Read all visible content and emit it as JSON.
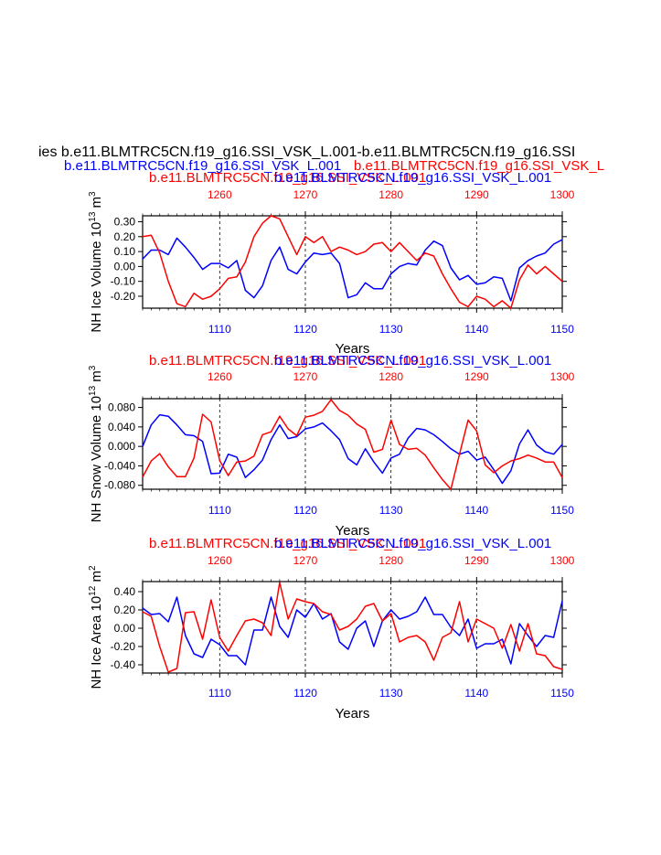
{
  "title": {
    "line1": "ies b.e11.BLMTRC5CN.f19_g16.SSI_VSK_L.001-b.e11.BLMTRC5CN.f19_g16.SSI",
    "line2_left": "b.e11.BLMTRC5CN.f19_g16.SSI_VSK_L.001",
    "line2_right": "b.e11.BLMTRC5CN.f19_g16.SSI_VSK_L",
    "line3_left": "b.e11.BLMTRC5CN.f19_g16.SSI_VSK_L.001",
    "line3_right": "b.e11.BLMTRC5CN.f19_g16.SSI_VSK_L.001"
  },
  "colors": {
    "run_top": "#ff0000",
    "run_bottom": "#0000ff",
    "axis": "#000000"
  },
  "chart_data": [
    {
      "type": "line",
      "ylabel": "NH Ice Volume 10",
      "ylabel_exp": "13",
      "ylabel_unit": " m",
      "ylabel_unit_exp": "3",
      "xlabel": "Years",
      "top_label_left": "b.e11.BLMTRC5CN.f19_g16.SSI_VSK_L.001",
      "top_label_right": "b.e11.BLMTRC5CN.f19_g16.SSI_VSK_L.001",
      "x_bottom": {
        "range": [
          1101,
          1150
        ],
        "ticks": [
          "1110",
          "1120",
          "1130",
          "1140",
          "1150"
        ]
      },
      "x_top": {
        "range": [
          1251,
          1300
        ],
        "ticks": [
          "1260",
          "1270",
          "1280",
          "1290",
          "1300"
        ]
      },
      "ylim": [
        -0.28,
        0.34
      ],
      "yticks": [
        "0.30",
        "0.20",
        "0.10",
        "0.00",
        "-0.10",
        "-0.20"
      ],
      "ytick_values": [
        0.3,
        0.2,
        0.1,
        0.0,
        -0.1,
        -0.2
      ],
      "grid": "dashed vertical at labeled ticks",
      "series": [
        {
          "color": "#0000ff",
          "axis": "bottom",
          "values": [
            0.05,
            0.11,
            0.11,
            0.08,
            0.19,
            0.13,
            0.06,
            -0.02,
            0.02,
            0.02,
            -0.01,
            0.04,
            -0.16,
            -0.21,
            -0.13,
            0.04,
            0.13,
            -0.02,
            -0.05,
            0.03,
            0.09,
            0.08,
            0.09,
            0.02,
            -0.21,
            -0.19,
            -0.11,
            -0.15,
            -0.15,
            -0.05,
            0.0,
            0.02,
            0.01,
            0.11,
            0.17,
            0.14,
            -0.01,
            -0.09,
            -0.06,
            -0.12,
            -0.11,
            -0.07,
            -0.08,
            -0.23,
            -0.01,
            0.04,
            0.07,
            0.09,
            0.15,
            0.18
          ]
        },
        {
          "color": "#ff0000",
          "axis": "top",
          "values": [
            0.2,
            0.21,
            0.09,
            -0.1,
            -0.25,
            -0.27,
            -0.18,
            -0.22,
            -0.2,
            -0.15,
            -0.08,
            -0.07,
            0.03,
            0.2,
            0.29,
            0.34,
            0.32,
            0.2,
            0.08,
            0.2,
            0.16,
            0.2,
            0.1,
            0.13,
            0.11,
            0.08,
            0.1,
            0.15,
            0.16,
            0.1,
            0.16,
            0.1,
            0.04,
            0.09,
            0.07,
            -0.05,
            -0.15,
            -0.24,
            -0.27,
            -0.2,
            -0.22,
            -0.27,
            -0.23,
            -0.28,
            -0.09,
            0.01,
            -0.05,
            0.0,
            -0.05,
            -0.1
          ]
        }
      ]
    },
    {
      "type": "line",
      "ylabel": "NH Snow Volume 10",
      "ylabel_exp": "13",
      "ylabel_unit": " m",
      "ylabel_unit_exp": "3",
      "xlabel": "Years",
      "top_label_left": "b.e11.BLMTRC5CN.f19_g16.SSI_VSK_L.001",
      "top_label_right": "b.e11.BLMTRC5CN.f19_g16.SSI_VSK_L.001",
      "x_bottom": {
        "range": [
          1101,
          1150
        ],
        "ticks": [
          "1110",
          "1120",
          "1130",
          "1140",
          "1150"
        ]
      },
      "x_top": {
        "range": [
          1251,
          1300
        ],
        "ticks": [
          "1260",
          "1270",
          "1280",
          "1290",
          "1300"
        ]
      },
      "ylim": [
        -0.088,
        0.098
      ],
      "yticks": [
        "0.080",
        "0.040",
        "0.000",
        "-0.040",
        "-0.080"
      ],
      "ytick_values": [
        0.08,
        0.04,
        0.0,
        -0.04,
        -0.08
      ],
      "grid": "dashed vertical at labeled ticks",
      "series": [
        {
          "color": "#0000ff",
          "axis": "bottom",
          "values": [
            0.0,
            0.044,
            0.065,
            0.062,
            0.044,
            0.024,
            0.022,
            0.01,
            -0.056,
            -0.055,
            -0.016,
            -0.022,
            -0.064,
            -0.048,
            -0.028,
            0.014,
            0.044,
            0.016,
            0.02,
            0.036,
            0.04,
            0.048,
            0.032,
            0.014,
            -0.025,
            -0.038,
            -0.005,
            -0.032,
            -0.055,
            -0.024,
            -0.016,
            0.017,
            0.037,
            0.034,
            0.024,
            0.01,
            -0.005,
            -0.016,
            -0.01,
            -0.028,
            -0.022,
            -0.048,
            -0.076,
            -0.05,
            0.005,
            0.034,
            0.003,
            -0.011,
            -0.016,
            0.004
          ]
        },
        {
          "color": "#ff0000",
          "axis": "top",
          "values": [
            -0.063,
            -0.03,
            -0.015,
            -0.042,
            -0.062,
            -0.062,
            -0.024,
            0.066,
            0.05,
            -0.029,
            -0.06,
            -0.032,
            -0.03,
            -0.02,
            0.024,
            0.03,
            0.062,
            0.036,
            0.022,
            0.06,
            0.064,
            0.072,
            0.096,
            0.074,
            0.064,
            0.046,
            0.035,
            -0.012,
            -0.006,
            0.054,
            0.004,
            -0.006,
            -0.004,
            -0.018,
            -0.044,
            -0.068,
            -0.088,
            -0.016,
            0.054,
            0.032,
            -0.038,
            -0.054,
            -0.04,
            -0.03,
            -0.025,
            -0.018,
            -0.024,
            -0.032,
            -0.032,
            -0.064
          ]
        }
      ]
    },
    {
      "type": "line",
      "ylabel": "NH Ice Area 10",
      "ylabel_exp": "12",
      "ylabel_unit": " m",
      "ylabel_unit_exp": "2",
      "xlabel": "Years",
      "top_label_left": "b.e11.BLMTRC5CN.f19_g16.SSI_VSK_L.001",
      "top_label_right": "b.e11.BLMTRC5CN.f19_g16.SSI_VSK_L.001",
      "x_bottom": {
        "range": [
          1101,
          1150
        ],
        "ticks": [
          "1110",
          "1120",
          "1130",
          "1140",
          "1150"
        ]
      },
      "x_top": {
        "range": [
          1251,
          1300
        ],
        "ticks": [
          "1260",
          "1270",
          "1280",
          "1290",
          "1300"
        ]
      },
      "ylim": [
        -0.49,
        0.51
      ],
      "yticks": [
        "0.40",
        "0.20",
        "0.00",
        "-0.20",
        "-0.40"
      ],
      "ytick_values": [
        0.4,
        0.2,
        0.0,
        -0.2,
        -0.4
      ],
      "grid": "dashed vertical at labeled ticks",
      "series": [
        {
          "color": "#0000ff",
          "axis": "bottom",
          "values": [
            0.22,
            0.15,
            0.16,
            0.07,
            0.34,
            -0.08,
            -0.28,
            -0.32,
            -0.12,
            -0.18,
            -0.3,
            -0.3,
            -0.4,
            -0.02,
            -0.02,
            0.34,
            0.02,
            -0.1,
            0.2,
            0.12,
            0.27,
            0.1,
            0.16,
            -0.15,
            -0.23,
            0.0,
            0.08,
            -0.2,
            0.08,
            0.2,
            0.1,
            0.13,
            0.18,
            0.34,
            0.15,
            0.15,
            0.01,
            -0.08,
            0.1,
            -0.22,
            -0.17,
            -0.17,
            -0.12,
            -0.39,
            0.05,
            -0.08,
            -0.2,
            -0.08,
            -0.1,
            0.3
          ]
        },
        {
          "color": "#ff0000",
          "axis": "top",
          "values": [
            0.18,
            0.13,
            -0.2,
            -0.48,
            -0.44,
            0.17,
            0.18,
            -0.12,
            0.31,
            -0.1,
            -0.25,
            -0.08,
            0.08,
            0.1,
            0.06,
            -0.08,
            0.5,
            0.1,
            0.32,
            0.29,
            0.27,
            0.18,
            0.15,
            -0.02,
            0.02,
            0.1,
            0.24,
            0.27,
            0.08,
            0.16,
            -0.15,
            -0.1,
            -0.08,
            -0.15,
            -0.35,
            -0.1,
            -0.05,
            0.29,
            -0.15,
            0.1,
            0.05,
            0.0,
            -0.22,
            0.04,
            -0.25,
            0.05,
            -0.28,
            -0.3,
            -0.42,
            -0.45
          ]
        }
      ]
    }
  ]
}
